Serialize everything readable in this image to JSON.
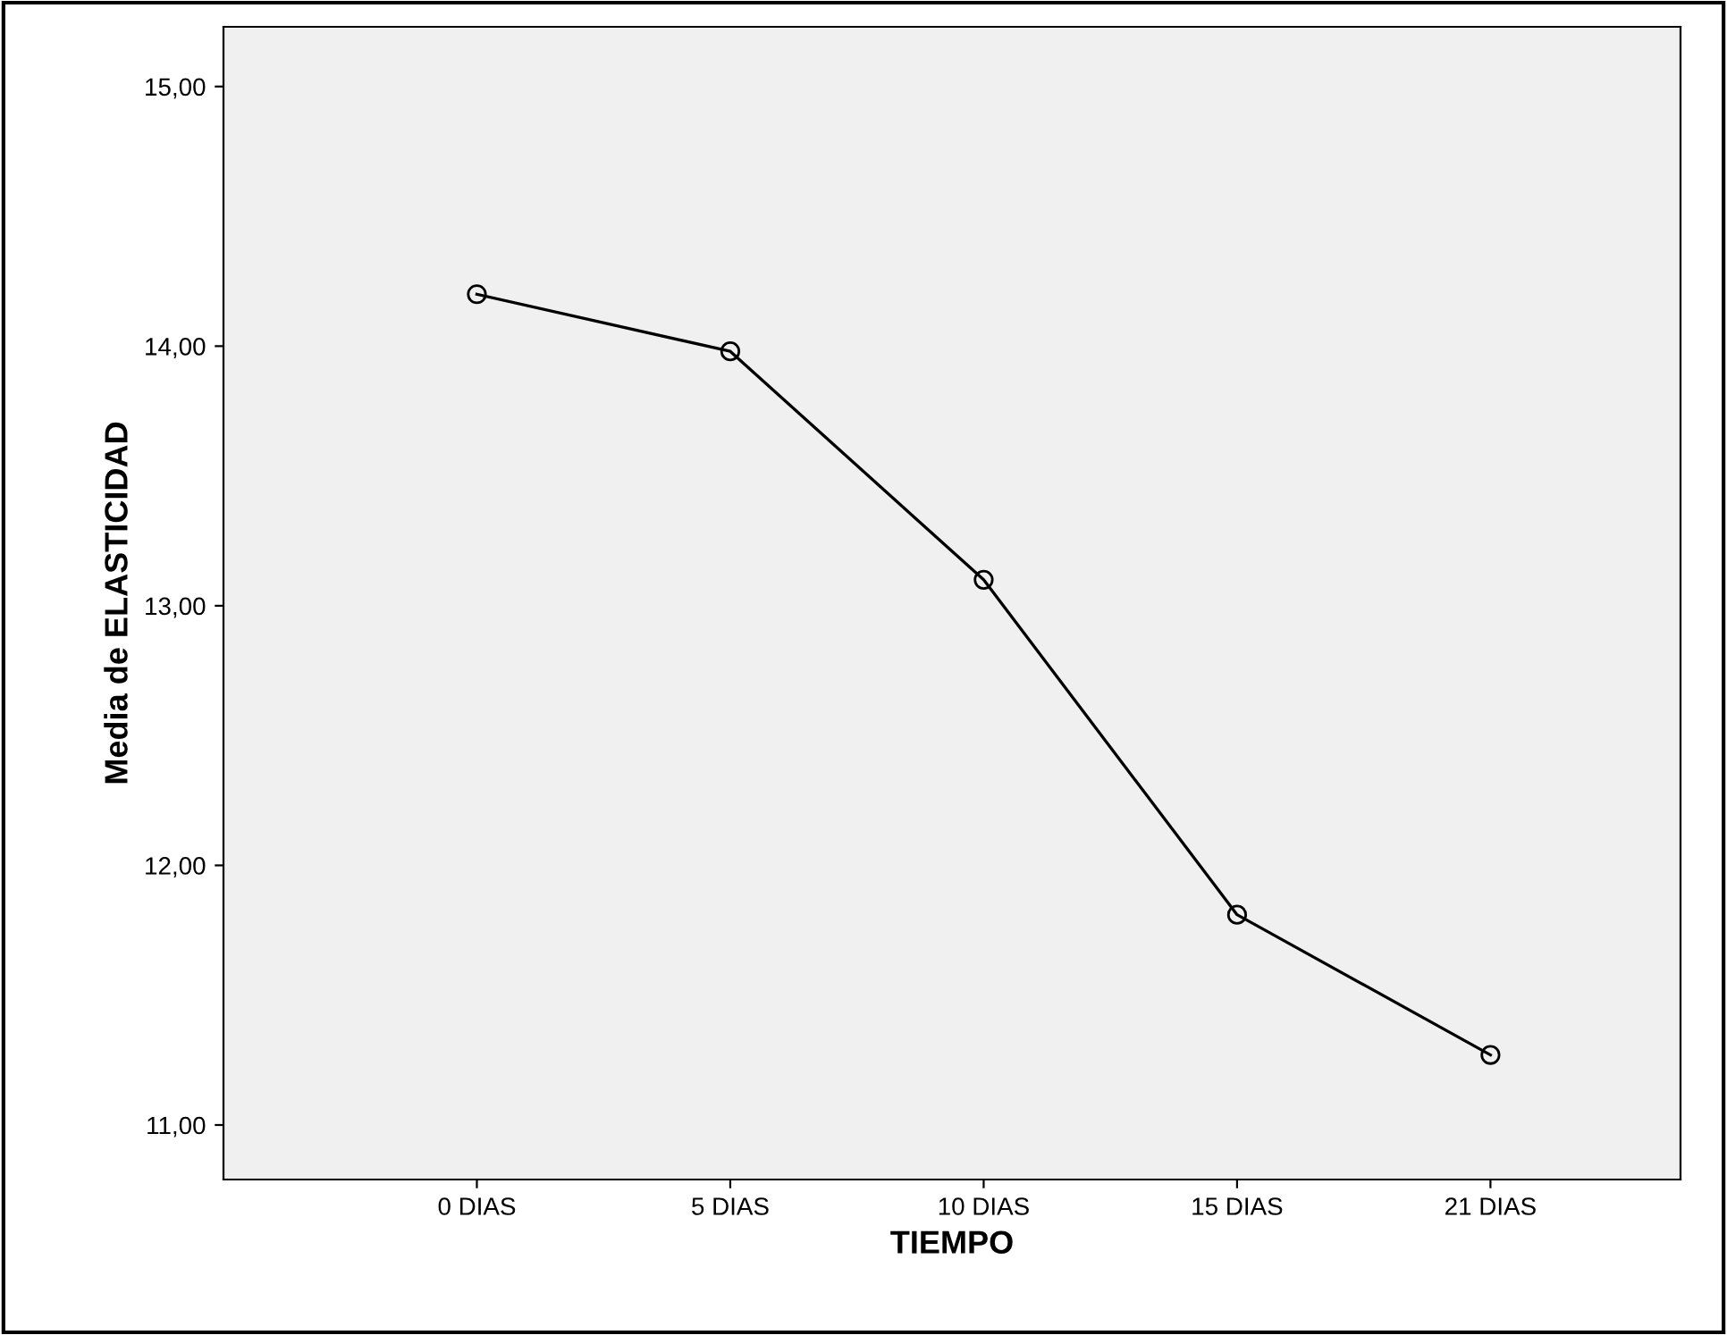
{
  "chart_data": {
    "type": "line",
    "xlabel": "TIEMPO",
    "ylabel": "Media de ELASTICIDAD",
    "categories": [
      "0 DIAS",
      "5 DIAS",
      "10 DIAS",
      "15 DIAS",
      "21 DIAS"
    ],
    "series": [
      {
        "color": "#000000",
        "values": [
          14.2,
          13.98,
          13.1,
          11.81,
          11.27
        ]
      }
    ],
    "ylim": [
      10.79,
      15.23
    ],
    "yticks": [
      {
        "value": 11,
        "label": "11,00"
      },
      {
        "value": 12,
        "label": "12,00"
      },
      {
        "value": 13,
        "label": "13,00"
      },
      {
        "value": 14,
        "label": "14,00"
      },
      {
        "value": 15,
        "label": "15,00"
      }
    ],
    "marker": "circle",
    "line_style": "solid",
    "grid": false,
    "legend": false
  }
}
